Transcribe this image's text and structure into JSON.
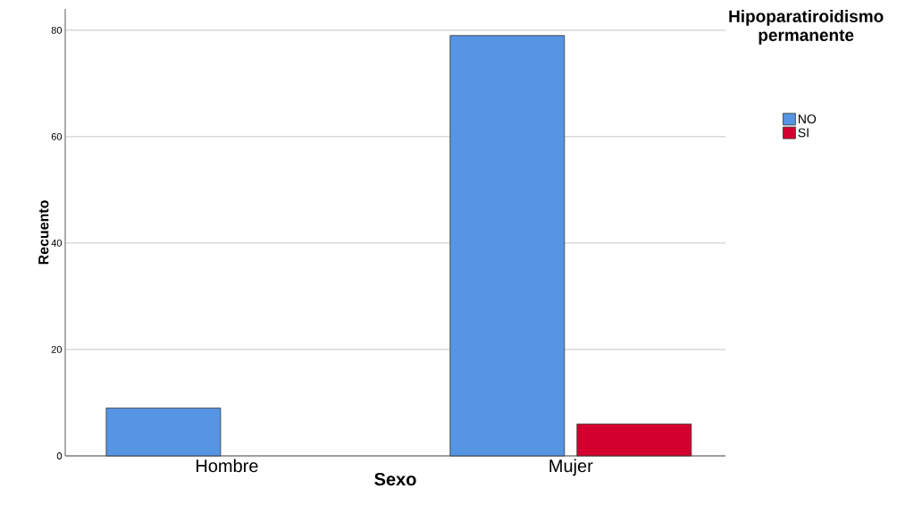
{
  "chart_data": {
    "type": "bar",
    "xlabel": "Sexo",
    "ylabel": "Recuento",
    "legend_title": "Hipoparatiroidismo permanente",
    "categories": [
      "Hombre",
      "Mujer"
    ],
    "series": [
      {
        "name": "NO",
        "color": "#5595e3",
        "values": [
          9,
          79
        ]
      },
      {
        "name": "SI",
        "color": "#d3002f",
        "values": [
          null,
          6
        ]
      }
    ],
    "ylim": [
      0,
      84
    ],
    "yticks": [
      0,
      20,
      40,
      60,
      80
    ],
    "grid": "y",
    "legend": "top right"
  }
}
